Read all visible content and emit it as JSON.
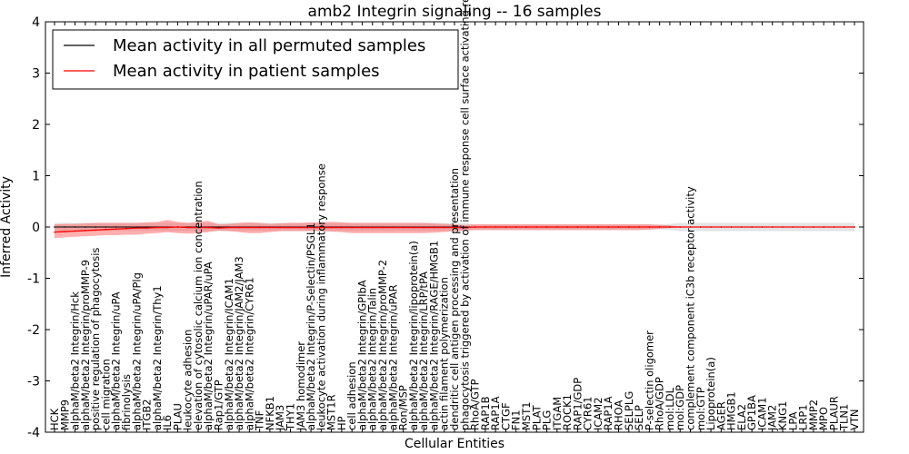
{
  "chart_data": {
    "type": "line",
    "title": "amb2 Integrin signaling -- 16 samples",
    "xlabel": "Cellular Entities",
    "ylabel": "Inferred Activity",
    "ylim": [
      -4,
      4
    ],
    "yticks": [
      -4,
      -3,
      -2,
      -1,
      0,
      1,
      2,
      3,
      4
    ],
    "grid": false,
    "legend_position": "top-left",
    "categories": [
      "HCK",
      "MMP9",
      "alphaM/beta2 Integrin/Hck",
      "alphaM/beta2 Integrin/proMMP-9",
      "positive regulation of phagocytosis",
      "cell migration",
      "alphaM/beta2 Integrin/uPA",
      "fibrinolysis",
      "alphaM/beta2 Integrin/uPA/Plg",
      "ITGB2",
      "alphaM/beta2 Integrin/Thy1",
      "IL6",
      "PLAU",
      "leukocyte adhesion",
      "elevation of cytosolic calcium ion concentration",
      "alphaM/beta2 Integrin/uPAR/uPA",
      "Rap1/GTP",
      "alphaM/beta2 Integrin/ICAM1",
      "alphaM/beta2 Integrin/JAM2/JAM3",
      "alphaM/beta2 Integrin/CYR61",
      "TNF",
      "NFKB1",
      "JAM3",
      "THY1",
      "JAM3 homodimer",
      "alphaM/beta2 Integrin/P-Selectin/PSGL1",
      "leukocyte activation during inflammatory response",
      "MST1R",
      "HP",
      "cell adhesion",
      "alphaM/beta2 Integrin/GPIbA",
      "alphaM/beta2 Integrin/Talin",
      "alphaM/beta2 Integrin/proMMP-2",
      "alphaM/beta2 Integrin/uPAR",
      "Ron/MSP",
      "alphaM/beta2 Integrin/lipoprotein(a)",
      "alphaM/beta2 Integrin/LRP/tPA",
      "alphaM/beta2 Integrin/RAGE/HMGB1",
      "actin filament polymerization",
      "dendritic cell antigen processing and presentation",
      "phagocytosis triggered by activation of immune response cell surface activating receptor",
      "RhoA/GTP",
      "RAP1B",
      "RAP1A",
      "CTGF",
      "FN1",
      "MST1",
      "PLAT",
      "PLG",
      "ITGAM",
      "ROCK1",
      "RAP1/GDP",
      "CYR61",
      "ICAM2",
      "RAP1A",
      "RHOA",
      "SELPLG",
      "SELP",
      "P-selectin oligomer",
      "RhoA/GDP",
      "mol:LDL",
      "mol:GDP",
      "complement component iC3b receptor activity",
      "mol:GTP",
      "Lipoprotein(a)",
      "AGER",
      "HMGB1",
      "ELA2",
      "GP1BA",
      "ICAM1",
      "JAM2",
      "KNG1",
      "LPA",
      "LRP1",
      "MMP2",
      "MPO",
      "PLAUR",
      "TLN1",
      "VTN"
    ],
    "series": [
      {
        "name": "Mean activity in all permuted samples",
        "color": "#000000",
        "values": [
          0,
          0,
          0,
          0,
          0,
          0,
          0,
          0,
          0,
          0,
          0,
          0,
          0,
          0,
          0,
          0,
          0,
          0,
          0,
          0,
          0,
          0,
          0,
          0,
          0,
          0,
          0,
          0,
          0,
          0,
          0,
          0,
          0,
          0,
          0,
          0,
          0,
          0,
          0,
          0,
          0,
          0,
          0,
          0,
          0,
          0,
          0,
          0,
          0,
          0,
          0,
          0,
          0,
          0,
          0,
          0,
          0,
          0,
          0,
          0,
          0,
          0,
          0,
          0,
          0,
          0,
          0,
          0,
          0,
          0,
          0,
          0,
          0,
          0,
          0,
          0,
          0,
          0,
          0
        ],
        "lower": [
          -0.08,
          -0.08,
          -0.08,
          -0.08,
          -0.08,
          -0.08,
          -0.08,
          -0.08,
          -0.08,
          -0.08,
          -0.08,
          -0.08,
          -0.08,
          -0.08,
          -0.08,
          -0.08,
          -0.08,
          -0.08,
          -0.08,
          -0.08,
          -0.08,
          -0.08,
          -0.08,
          -0.08,
          -0.08,
          -0.08,
          -0.08,
          -0.08,
          -0.08,
          -0.08,
          -0.08,
          -0.08,
          -0.08,
          -0.08,
          -0.08,
          -0.08,
          -0.08,
          -0.08,
          -0.08,
          -0.08,
          -0.08,
          -0.05,
          -0.05,
          -0.05,
          -0.05,
          -0.05,
          -0.05,
          -0.05,
          -0.05,
          -0.05,
          -0.05,
          -0.05,
          -0.05,
          -0.05,
          -0.05,
          -0.05,
          -0.05,
          -0.05,
          -0.05,
          -0.05,
          -0.06,
          -0.08,
          -0.08,
          -0.08,
          -0.08,
          -0.08,
          -0.08,
          -0.08,
          -0.08,
          -0.08,
          -0.08,
          -0.08,
          -0.08,
          -0.08,
          -0.08,
          -0.08,
          -0.08,
          -0.08,
          -0.08
        ],
        "upper": [
          0.08,
          0.08,
          0.08,
          0.08,
          0.08,
          0.08,
          0.08,
          0.08,
          0.08,
          0.08,
          0.08,
          0.08,
          0.08,
          0.08,
          0.08,
          0.08,
          0.08,
          0.08,
          0.08,
          0.08,
          0.08,
          0.08,
          0.08,
          0.08,
          0.08,
          0.08,
          0.08,
          0.08,
          0.08,
          0.08,
          0.08,
          0.08,
          0.08,
          0.08,
          0.08,
          0.08,
          0.08,
          0.08,
          0.08,
          0.08,
          0.08,
          0.05,
          0.05,
          0.05,
          0.05,
          0.05,
          0.05,
          0.05,
          0.05,
          0.05,
          0.05,
          0.05,
          0.05,
          0.05,
          0.05,
          0.05,
          0.05,
          0.05,
          0.05,
          0.05,
          0.06,
          0.08,
          0.08,
          0.08,
          0.08,
          0.08,
          0.08,
          0.08,
          0.08,
          0.08,
          0.08,
          0.08,
          0.08,
          0.08,
          0.08,
          0.08,
          0.08,
          0.08,
          0.08
        ]
      },
      {
        "name": "Mean activity in patient samples",
        "color": "#ff0000",
        "values": [
          -0.1,
          -0.09,
          -0.08,
          -0.07,
          -0.06,
          -0.05,
          -0.04,
          -0.03,
          -0.02,
          -0.02,
          -0.01,
          -0.01,
          0,
          -0.01,
          -0.01,
          -0.01,
          -0.02,
          -0.01,
          -0.01,
          -0.01,
          -0.01,
          -0.01,
          -0.01,
          -0.01,
          -0.01,
          -0.01,
          -0.01,
          -0.01,
          -0.01,
          -0.01,
          -0.01,
          -0.01,
          -0.01,
          -0.01,
          -0.01,
          -0.01,
          -0.01,
          -0.01,
          -0.01,
          -0.01,
          -0.01,
          0,
          0,
          0,
          0,
          0,
          0,
          0,
          0,
          0,
          0,
          0,
          0,
          0,
          0,
          0,
          0,
          0,
          0,
          0,
          0,
          0,
          0,
          0,
          0,
          0,
          0,
          0,
          0,
          0,
          0,
          0,
          0,
          0,
          0,
          0,
          0,
          0,
          0
        ],
        "lower": [
          -0.22,
          -0.2,
          -0.19,
          -0.18,
          -0.17,
          -0.16,
          -0.16,
          -0.15,
          -0.15,
          -0.13,
          -0.12,
          -0.1,
          -0.12,
          -0.13,
          -0.12,
          -0.1,
          -0.07,
          -0.08,
          -0.1,
          -0.12,
          -0.12,
          -0.1,
          -0.08,
          -0.08,
          -0.08,
          -0.08,
          -0.08,
          -0.09,
          -0.1,
          -0.12,
          -0.12,
          -0.12,
          -0.12,
          -0.12,
          -0.12,
          -0.12,
          -0.12,
          -0.11,
          -0.1,
          -0.08,
          -0.07,
          -0.06,
          -0.06,
          -0.06,
          -0.06,
          -0.06,
          -0.06,
          -0.06,
          -0.06,
          -0.06,
          -0.06,
          -0.06,
          -0.06,
          -0.06,
          -0.06,
          -0.06,
          -0.06,
          -0.06,
          -0.05,
          -0.03,
          -0.02,
          -0.01,
          -0.01,
          -0.01,
          -0.01,
          -0.01,
          -0.01,
          -0.01,
          -0.01,
          -0.01,
          -0.01,
          -0.01,
          -0.01,
          -0.01,
          -0.01,
          -0.01,
          -0.01,
          -0.01,
          -0.01
        ],
        "upper": [
          0.05,
          0.06,
          0.06,
          0.07,
          0.08,
          0.08,
          0.08,
          0.08,
          0.08,
          0.09,
          0.1,
          0.14,
          0.1,
          0.08,
          0.1,
          0.12,
          0.05,
          0.06,
          0.08,
          0.09,
          0.08,
          0.06,
          0.07,
          0.08,
          0.08,
          0.09,
          0.09,
          0.1,
          0.09,
          0.08,
          0.08,
          0.08,
          0.08,
          0.08,
          0.08,
          0.08,
          0.08,
          0.07,
          0.06,
          0.05,
          0.04,
          0.05,
          0.05,
          0.05,
          0.05,
          0.05,
          0.05,
          0.05,
          0.05,
          0.05,
          0.05,
          0.05,
          0.05,
          0.05,
          0.05,
          0.05,
          0.05,
          0.05,
          0.05,
          0.04,
          0.03,
          0.01,
          0.01,
          0.01,
          0.01,
          0.01,
          0.01,
          0.01,
          0.01,
          0.01,
          0.01,
          0.01,
          0.01,
          0.01,
          0.01,
          0.01,
          0.01,
          0.01,
          0.01
        ]
      }
    ]
  }
}
